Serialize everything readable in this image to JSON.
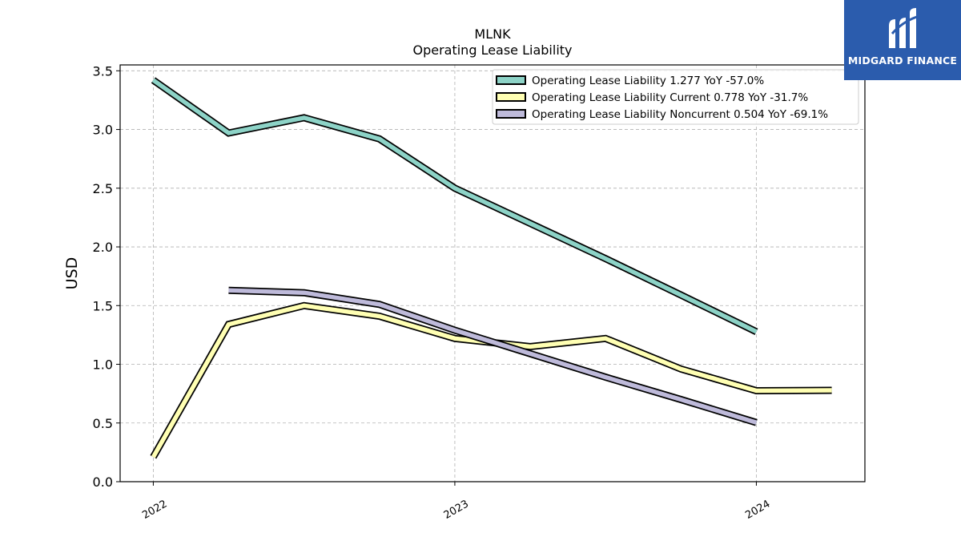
{
  "chart_data": {
    "type": "line",
    "title": "MLNK",
    "subtitle": "Operating Lease Liability",
    "xlabel": "",
    "ylabel": "USD",
    "x_ticks": [
      "2022",
      "2023",
      "2024"
    ],
    "xlim": [
      2021.89,
      2024.36
    ],
    "ylim": [
      0,
      3.55
    ],
    "y_ticks": [
      "0.0",
      "0.5",
      "1.0",
      "1.5",
      "2.0",
      "2.5",
      "3.0",
      "3.5"
    ],
    "grid": true,
    "legend_position": "top-right",
    "series": [
      {
        "name": "Operating Lease Liability  1.277 YoY -57.0%",
        "color": "#8dd3c7",
        "points": [
          [
            2022.0,
            3.42
          ],
          [
            2022.25,
            2.97
          ],
          [
            2022.5,
            3.1
          ],
          [
            2022.75,
            2.92
          ],
          [
            2023.0,
            2.5
          ],
          [
            2023.25,
            2.2
          ],
          [
            2023.5,
            1.9
          ],
          [
            2023.75,
            1.59
          ],
          [
            2024.0,
            1.277
          ]
        ]
      },
      {
        "name": "Operating Lease Liability Current  0.778 YoY -31.7%",
        "color": "#ffffb3",
        "points": [
          [
            2022.0,
            0.21
          ],
          [
            2022.25,
            1.34
          ],
          [
            2022.5,
            1.5
          ],
          [
            2022.75,
            1.41
          ],
          [
            2023.0,
            1.22
          ],
          [
            2023.25,
            1.15
          ],
          [
            2023.5,
            1.22
          ],
          [
            2023.75,
            0.96
          ],
          [
            2024.0,
            0.775
          ],
          [
            2024.25,
            0.778
          ]
        ]
      },
      {
        "name": "Operating Lease Liability Noncurrent  0.504 YoY -69.1%",
        "color": "#bebada",
        "points": [
          [
            2022.25,
            1.63
          ],
          [
            2022.5,
            1.61
          ],
          [
            2022.75,
            1.51
          ],
          [
            2023.0,
            1.29
          ],
          [
            2023.25,
            1.09
          ],
          [
            2023.5,
            0.89
          ],
          [
            2023.75,
            0.7
          ],
          [
            2024.0,
            0.504
          ]
        ]
      }
    ]
  },
  "logo": {
    "text": "MIDGARD FINANCE",
    "color": "#2b5cad"
  }
}
